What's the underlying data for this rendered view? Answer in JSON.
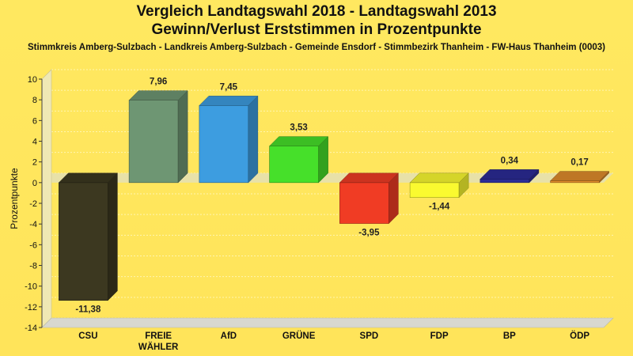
{
  "header": {
    "title_line1": "Vergleich Landtagswahl 2018 - Landtagswahl 2013",
    "title_line2": "Gewinn/Verlust Erststimmen in Prozentpunkte",
    "subtitle": "Stimmkreis Amberg-Sulzbach - Landkreis Amberg-Sulzbach - Gemeinde Ensdorf - Stimmbezirk Thanheim - FW-Haus Thanheim (0003)"
  },
  "chart_data": {
    "type": "bar",
    "title": "Vergleich Landtagswahl 2018 - Landtagswahl 2013 / Gewinn/Verlust Erststimmen in Prozentpunkte",
    "xlabel": "",
    "ylabel": "Prozentpunkte",
    "ylim": [
      -14,
      10
    ],
    "yticks": [
      10,
      8,
      6,
      4,
      2,
      0,
      -2,
      -4,
      -6,
      -8,
      -10,
      -12,
      -14
    ],
    "grid": true,
    "categories": [
      {
        "label": "CSU",
        "label2": ""
      },
      {
        "label": "FREIE",
        "label2": "WÄHLER"
      },
      {
        "label": "AfD",
        "label2": ""
      },
      {
        "label": "GRÜNE",
        "label2": ""
      },
      {
        "label": "SPD",
        "label2": ""
      },
      {
        "label": "FDP",
        "label2": ""
      },
      {
        "label": "BP",
        "label2": ""
      },
      {
        "label": "ÖDP",
        "label2": ""
      }
    ],
    "values": [
      -11.38,
      7.96,
      7.45,
      3.53,
      -3.95,
      -1.44,
      0.34,
      0.17
    ],
    "value_labels": [
      "-11,38",
      "7,96",
      "7,45",
      "3,53",
      "-3,95",
      "-1,44",
      "0,34",
      "0,17"
    ],
    "colors": [
      "#3c3820",
      "#6e9673",
      "#3d9de0",
      "#46e02a",
      "#f03c24",
      "#fafa30",
      "#2c2c96",
      "#e08c2c"
    ]
  }
}
